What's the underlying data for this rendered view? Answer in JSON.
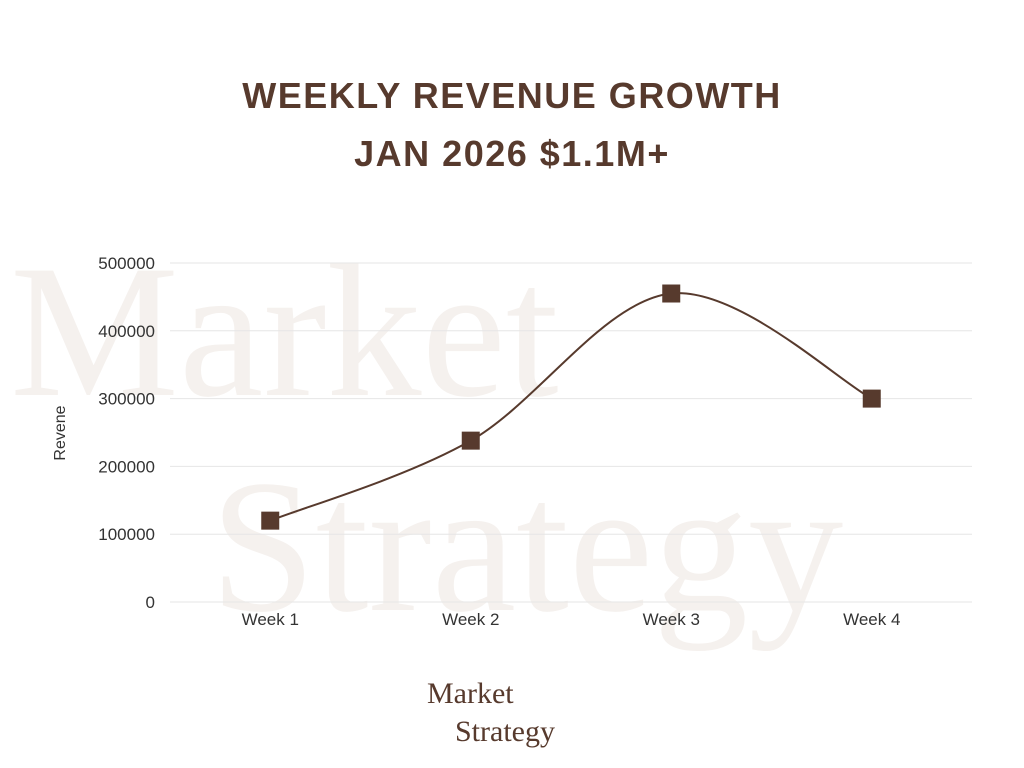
{
  "title": {
    "line1": "WEEKLY REVENUE GROWTH",
    "line2": "JAN 2026 $1.1M+"
  },
  "logo": {
    "line1": "Market",
    "line2": "Strategy"
  },
  "watermark": {
    "line1": "Market",
    "line2": "Strategy"
  },
  "colors": {
    "accent": "#573A2D",
    "gridline": "#E6E6E6",
    "watermark": "#F5F1EE"
  },
  "chart_data": {
    "type": "line",
    "title": "WEEKLY REVENUE GROWTH JAN 2026 $1.1M+",
    "xlabel": "",
    "ylabel": "Revene",
    "categories": [
      "Week 1",
      "Week 2",
      "Week 3",
      "Week 4"
    ],
    "series": [
      {
        "values": [
          120000,
          238000,
          455000,
          300000
        ]
      }
    ],
    "ylim": [
      0,
      500000
    ],
    "yticks": [
      0,
      100000,
      200000,
      300000,
      400000,
      500000
    ],
    "ytick_labels": [
      "0",
      "100000",
      "200000",
      "300000",
      "400000",
      "500000"
    ],
    "grid": true,
    "legend": "none",
    "line_style": "smooth",
    "marker": "square"
  }
}
